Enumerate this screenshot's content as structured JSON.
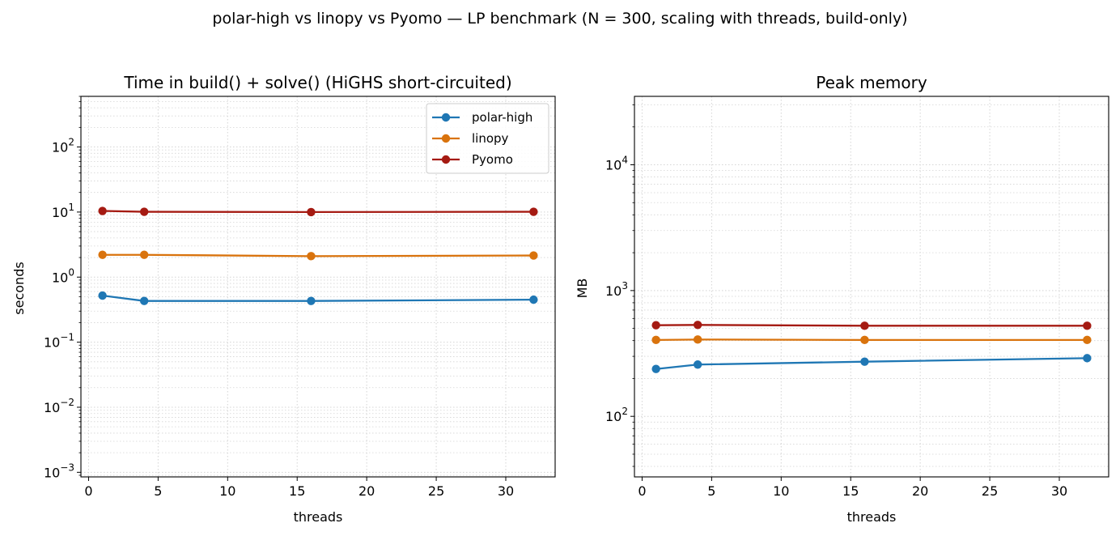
{
  "suptitle": "polar-high vs linopy vs Pyomo — LP benchmark (N = 300, scaling with threads, build-only)",
  "colors": {
    "polar-high": "#1f77b4",
    "linopy": "#d9730d",
    "Pyomo": "#a51a12",
    "grid": "#d4d4d4"
  },
  "chart_data": [
    {
      "type": "line",
      "title": "Time in build() + solve()  (HiGHS short-circuited)",
      "xlabel": "threads",
      "ylabel": "seconds",
      "xlim": [
        -0.55,
        33.55
      ],
      "xticks": [
        0,
        5,
        10,
        15,
        20,
        25,
        30
      ],
      "yscale": "log",
      "ylim": [
        0.00085,
        600
      ],
      "yticks_exp": [
        -3,
        -2,
        -1,
        0,
        1,
        2
      ],
      "grid": true,
      "legend": "top-right",
      "x": [
        1,
        4,
        16,
        32
      ],
      "series": [
        {
          "name": "polar-high",
          "values": [
            0.52,
            0.43,
            0.43,
            0.45
          ]
        },
        {
          "name": "linopy",
          "values": [
            2.2,
            2.2,
            2.1,
            2.15
          ]
        },
        {
          "name": "Pyomo",
          "values": [
            10.4,
            10.1,
            10.0,
            10.1
          ]
        }
      ]
    },
    {
      "type": "line",
      "title": "Peak memory",
      "xlabel": "threads",
      "ylabel": "MB",
      "xlim": [
        -0.55,
        33.55
      ],
      "xticks": [
        0,
        5,
        10,
        15,
        20,
        25,
        30
      ],
      "yscale": "log",
      "ylim": [
        33,
        35000
      ],
      "yticks_exp": [
        2,
        3,
        4
      ],
      "grid": true,
      "x": [
        1,
        4,
        16,
        32
      ],
      "series": [
        {
          "name": "polar-high",
          "values": [
            238,
            258,
            272,
            290
          ]
        },
        {
          "name": "linopy",
          "values": [
            405,
            408,
            405,
            405
          ]
        },
        {
          "name": "Pyomo",
          "values": [
            530,
            533,
            525,
            525
          ]
        }
      ]
    }
  ]
}
